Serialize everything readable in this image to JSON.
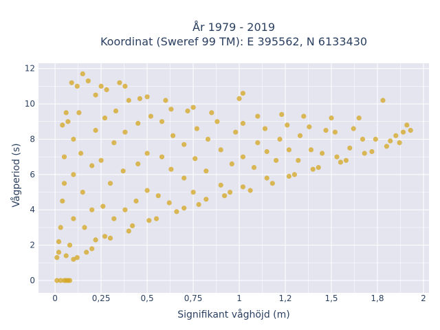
{
  "chart_data": {
    "type": "scatter",
    "title": [
      "År 1979 - 2019",
      "Koordinat (Sweref 99 TM): E 395562, N 6133430"
    ],
    "xlabel": "Signifikant våghöjd (m)",
    "ylabel": "Vågperiod (s)",
    "xlim": [
      -0.09,
      2.03
    ],
    "ylim": [
      -0.7,
      12.3
    ],
    "xticks": [
      0,
      0.25,
      0.5,
      0.75,
      1,
      1.25,
      1.5,
      1.75,
      2
    ],
    "xtick_labels": [
      "0",
      "0,25",
      "0,5",
      "0,75",
      "1",
      "1,2",
      "1,5",
      "1,8",
      "2"
    ],
    "yticks": [
      0,
      2,
      4,
      6,
      8,
      10,
      12
    ],
    "ytick_labels": [
      "0",
      "2",
      "4",
      "6",
      "8",
      "10",
      "12"
    ],
    "grid": true,
    "colors": {
      "marker": "#D4A520",
      "plot_bg": "#E5E5F0",
      "grid": "#ffffff"
    },
    "series": [
      {
        "points": [
          [
            0.01,
            0.0
          ],
          [
            0.03,
            0.0
          ],
          [
            0.05,
            0.0
          ],
          [
            0.06,
            0.0
          ],
          [
            0.07,
            0.0
          ],
          [
            0.08,
            0.0
          ],
          [
            0.01,
            1.3
          ],
          [
            0.02,
            1.6
          ],
          [
            0.02,
            2.2
          ],
          [
            0.03,
            3.0
          ],
          [
            0.04,
            4.5
          ],
          [
            0.05,
            5.5
          ],
          [
            0.05,
            7.0
          ],
          [
            0.04,
            8.8
          ],
          [
            0.06,
            9.5
          ],
          [
            0.07,
            9.0
          ],
          [
            0.08,
            2.0
          ],
          [
            0.06,
            1.4
          ],
          [
            0.1,
            1.2
          ],
          [
            0.12,
            1.3
          ],
          [
            0.1,
            3.5
          ],
          [
            0.1,
            6.0
          ],
          [
            0.1,
            8.0
          ],
          [
            0.09,
            11.2
          ],
          [
            0.12,
            11.0
          ],
          [
            0.15,
            11.7
          ],
          [
            0.18,
            11.3
          ],
          [
            0.13,
            9.5
          ],
          [
            0.14,
            7.2
          ],
          [
            0.15,
            5.0
          ],
          [
            0.16,
            3.0
          ],
          [
            0.17,
            1.6
          ],
          [
            0.2,
            1.8
          ],
          [
            0.22,
            2.3
          ],
          [
            0.2,
            4.0
          ],
          [
            0.2,
            6.5
          ],
          [
            0.22,
            8.5
          ],
          [
            0.22,
            10.5
          ],
          [
            0.25,
            11.0
          ],
          [
            0.28,
            10.8
          ],
          [
            0.27,
            9.2
          ],
          [
            0.25,
            6.8
          ],
          [
            0.26,
            4.2
          ],
          [
            0.27,
            2.5
          ],
          [
            0.3,
            2.4
          ],
          [
            0.32,
            3.5
          ],
          [
            0.3,
            5.5
          ],
          [
            0.32,
            7.8
          ],
          [
            0.33,
            9.6
          ],
          [
            0.35,
            11.2
          ],
          [
            0.38,
            11.0
          ],
          [
            0.4,
            10.2
          ],
          [
            0.38,
            8.4
          ],
          [
            0.37,
            6.2
          ],
          [
            0.38,
            4.0
          ],
          [
            0.4,
            2.8
          ],
          [
            0.42,
            3.1
          ],
          [
            0.44,
            4.5
          ],
          [
            0.45,
            6.6
          ],
          [
            0.45,
            8.9
          ],
          [
            0.46,
            10.3
          ],
          [
            0.5,
            10.4
          ],
          [
            0.52,
            9.3
          ],
          [
            0.5,
            7.2
          ],
          [
            0.5,
            5.1
          ],
          [
            0.51,
            3.4
          ],
          [
            0.55,
            3.5
          ],
          [
            0.56,
            4.8
          ],
          [
            0.58,
            7.0
          ],
          [
            0.58,
            9.0
          ],
          [
            0.6,
            10.2
          ],
          [
            0.63,
            9.7
          ],
          [
            0.64,
            8.2
          ],
          [
            0.63,
            6.3
          ],
          [
            0.62,
            4.4
          ],
          [
            0.66,
            3.9
          ],
          [
            0.7,
            4.1
          ],
          [
            0.7,
            5.8
          ],
          [
            0.7,
            7.7
          ],
          [
            0.72,
            9.6
          ],
          [
            0.75,
            9.8
          ],
          [
            0.77,
            8.6
          ],
          [
            0.76,
            6.9
          ],
          [
            0.75,
            5.0
          ],
          [
            0.78,
            4.3
          ],
          [
            0.82,
            4.6
          ],
          [
            0.82,
            6.2
          ],
          [
            0.83,
            8.0
          ],
          [
            0.85,
            9.5
          ],
          [
            0.88,
            9.0
          ],
          [
            0.9,
            7.4
          ],
          [
            0.9,
            5.4
          ],
          [
            0.92,
            4.8
          ],
          [
            0.95,
            5.0
          ],
          [
            0.96,
            6.6
          ],
          [
            0.98,
            8.4
          ],
          [
            1.0,
            10.3
          ],
          [
            1.02,
            10.6
          ],
          [
            1.02,
            8.9
          ],
          [
            1.02,
            7.0
          ],
          [
            1.02,
            5.3
          ],
          [
            1.06,
            5.1
          ],
          [
            1.08,
            6.4
          ],
          [
            1.1,
            7.8
          ],
          [
            1.1,
            9.3
          ],
          [
            1.14,
            8.6
          ],
          [
            1.15,
            7.3
          ],
          [
            1.15,
            5.8
          ],
          [
            1.18,
            5.5
          ],
          [
            1.2,
            6.8
          ],
          [
            1.22,
            8.0
          ],
          [
            1.23,
            9.4
          ],
          [
            1.26,
            8.8
          ],
          [
            1.27,
            7.4
          ],
          [
            1.27,
            5.9
          ],
          [
            1.3,
            6.0
          ],
          [
            1.32,
            6.8
          ],
          [
            1.33,
            8.2
          ],
          [
            1.35,
            9.3
          ],
          [
            1.38,
            8.7
          ],
          [
            1.39,
            7.4
          ],
          [
            1.4,
            6.3
          ],
          [
            1.43,
            6.4
          ],
          [
            1.45,
            7.2
          ],
          [
            1.47,
            8.5
          ],
          [
            1.5,
            9.2
          ],
          [
            1.52,
            8.4
          ],
          [
            1.53,
            7.0
          ],
          [
            1.55,
            6.7
          ],
          [
            1.58,
            6.8
          ],
          [
            1.6,
            7.5
          ],
          [
            1.62,
            8.6
          ],
          [
            1.65,
            9.2
          ],
          [
            1.67,
            8.0
          ],
          [
            1.68,
            7.2
          ],
          [
            1.72,
            7.3
          ],
          [
            1.74,
            8.0
          ],
          [
            1.78,
            10.2
          ],
          [
            1.8,
            7.6
          ],
          [
            1.82,
            7.9
          ],
          [
            1.85,
            8.2
          ],
          [
            1.87,
            7.8
          ],
          [
            1.89,
            8.4
          ],
          [
            1.91,
            8.8
          ],
          [
            1.93,
            8.5
          ]
        ]
      }
    ]
  }
}
